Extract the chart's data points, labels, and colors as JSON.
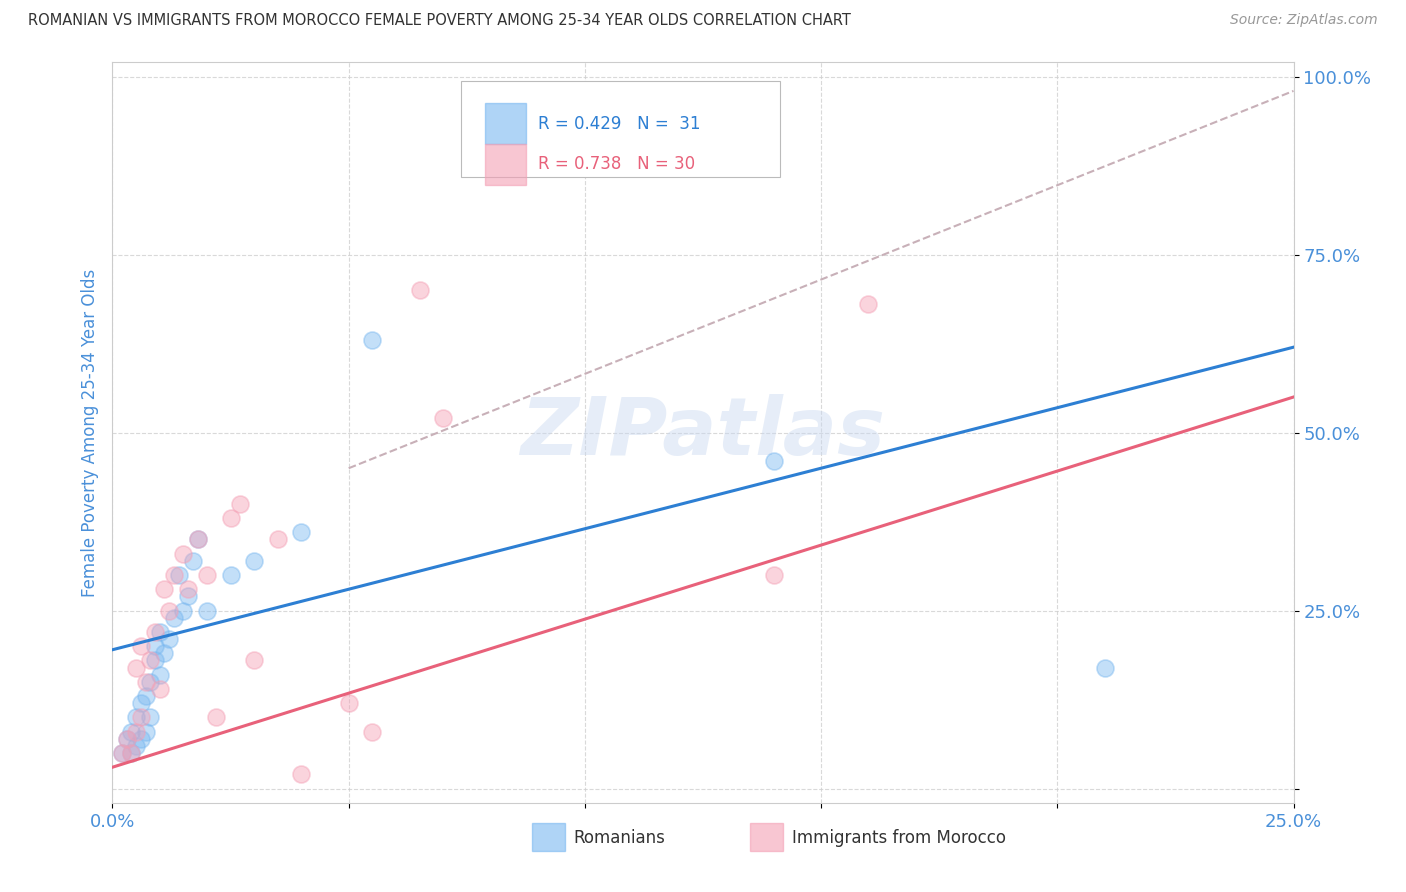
{
  "title": "ROMANIAN VS IMMIGRANTS FROM MOROCCO FEMALE POVERTY AMONG 25-34 YEAR OLDS CORRELATION CHART",
  "source": "Source: ZipAtlas.com",
  "ylabel": "Female Poverty Among 25-34 Year Olds",
  "xlim": [
    0.0,
    0.25
  ],
  "ylim": [
    -0.02,
    1.02
  ],
  "xticks": [
    0.0,
    0.05,
    0.1,
    0.15,
    0.2,
    0.25
  ],
  "yticks": [
    0.0,
    0.25,
    0.5,
    0.75,
    1.0
  ],
  "xtick_labels": [
    "0.0%",
    "",
    "",
    "",
    "",
    "25.0%"
  ],
  "ytick_labels": [
    "",
    "25.0%",
    "50.0%",
    "75.0%",
    "100.0%"
  ],
  "blue_color": "#7ab8f0",
  "pink_color": "#f4a0b5",
  "blue_line_color": "#2d7fd3",
  "pink_line_color": "#e8617a",
  "dashed_line_color": "#c8b0b8",
  "watermark": "ZIPatlas",
  "blue_scatter_x": [
    0.002,
    0.003,
    0.004,
    0.004,
    0.005,
    0.005,
    0.006,
    0.006,
    0.007,
    0.007,
    0.008,
    0.008,
    0.009,
    0.009,
    0.01,
    0.01,
    0.011,
    0.012,
    0.013,
    0.014,
    0.015,
    0.016,
    0.017,
    0.018,
    0.02,
    0.025,
    0.03,
    0.04,
    0.055,
    0.14,
    0.21
  ],
  "blue_scatter_y": [
    0.05,
    0.07,
    0.05,
    0.08,
    0.06,
    0.1,
    0.07,
    0.12,
    0.08,
    0.13,
    0.1,
    0.15,
    0.18,
    0.2,
    0.16,
    0.22,
    0.19,
    0.21,
    0.24,
    0.3,
    0.25,
    0.27,
    0.32,
    0.35,
    0.25,
    0.3,
    0.32,
    0.36,
    0.63,
    0.46,
    0.17
  ],
  "pink_scatter_x": [
    0.002,
    0.003,
    0.004,
    0.005,
    0.005,
    0.006,
    0.006,
    0.007,
    0.008,
    0.009,
    0.01,
    0.011,
    0.012,
    0.013,
    0.015,
    0.016,
    0.018,
    0.02,
    0.022,
    0.025,
    0.027,
    0.03,
    0.035,
    0.04,
    0.05,
    0.055,
    0.065,
    0.07,
    0.14,
    0.16
  ],
  "pink_scatter_y": [
    0.05,
    0.07,
    0.05,
    0.08,
    0.17,
    0.1,
    0.2,
    0.15,
    0.18,
    0.22,
    0.14,
    0.28,
    0.25,
    0.3,
    0.33,
    0.28,
    0.35,
    0.3,
    0.1,
    0.38,
    0.4,
    0.18,
    0.35,
    0.02,
    0.12,
    0.08,
    0.7,
    0.52,
    0.3,
    0.68
  ],
  "blue_line_x": [
    0.0,
    0.25
  ],
  "blue_line_y": [
    0.195,
    0.62
  ],
  "pink_line_x": [
    0.0,
    0.25
  ],
  "pink_line_y": [
    0.03,
    0.55
  ],
  "dashed_line_x": [
    0.05,
    0.25
  ],
  "dashed_line_y": [
    0.45,
    0.98
  ],
  "marker_size": 150,
  "marker_alpha": 0.45,
  "background_color": "#ffffff",
  "grid_color": "#d0d0d0",
  "title_color": "#333333",
  "axis_label_color": "#4a90d9",
  "tick_label_color": "#4a90d9"
}
